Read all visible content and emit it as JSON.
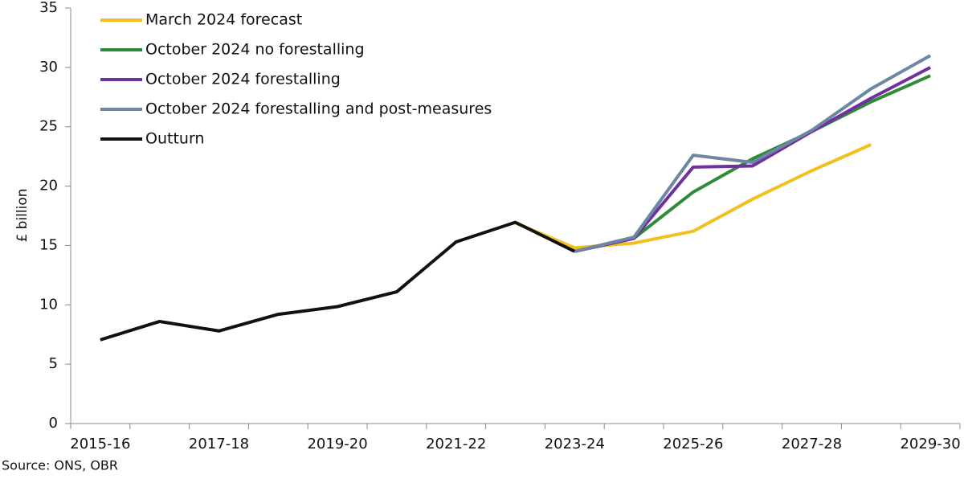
{
  "chart_data": {
    "type": "line",
    "ylabel": "£ billion",
    "source": "Source: ONS, OBR",
    "categories": [
      "2015-16",
      null,
      "2017-18",
      null,
      "2019-20",
      null,
      "2021-22",
      null,
      "2023-24",
      null,
      "2025-26",
      null,
      "2027-28",
      null,
      "2029-30"
    ],
    "series": [
      {
        "name": "March 2024 forecast",
        "color": "#f2c01e",
        "values": [
          null,
          null,
          null,
          null,
          null,
          null,
          null,
          16.9,
          14.8,
          15.2,
          16.2,
          18.9,
          21.3,
          23.5,
          null
        ]
      },
      {
        "name": "October 2024 no forestalling",
        "color": "#2e8b3a",
        "values": [
          null,
          null,
          null,
          null,
          null,
          null,
          null,
          null,
          14.5,
          15.6,
          19.5,
          22.3,
          24.6,
          27.1,
          29.3
        ]
      },
      {
        "name": "October 2024 forestalling",
        "color": "#7030a0",
        "values": [
          null,
          null,
          null,
          null,
          null,
          null,
          null,
          null,
          14.5,
          15.6,
          21.6,
          21.7,
          24.6,
          27.4,
          30.0
        ]
      },
      {
        "name": "October 2024 forestalling and post-measures",
        "color": "#6d87a3",
        "values": [
          null,
          null,
          null,
          null,
          null,
          null,
          null,
          null,
          14.5,
          15.7,
          22.6,
          22.0,
          24.7,
          28.2,
          31.0
        ]
      },
      {
        "name": "Outturn",
        "color": "#111111",
        "values": [
          7.05,
          8.6,
          7.8,
          9.2,
          9.85,
          11.1,
          15.3,
          16.95,
          14.5,
          null,
          null,
          null,
          null,
          null,
          null
        ]
      }
    ],
    "ylim": [
      0,
      35
    ],
    "yticks": [
      0,
      5,
      10,
      15,
      20,
      25,
      30,
      35
    ],
    "grid": false,
    "legend": "top-left"
  }
}
